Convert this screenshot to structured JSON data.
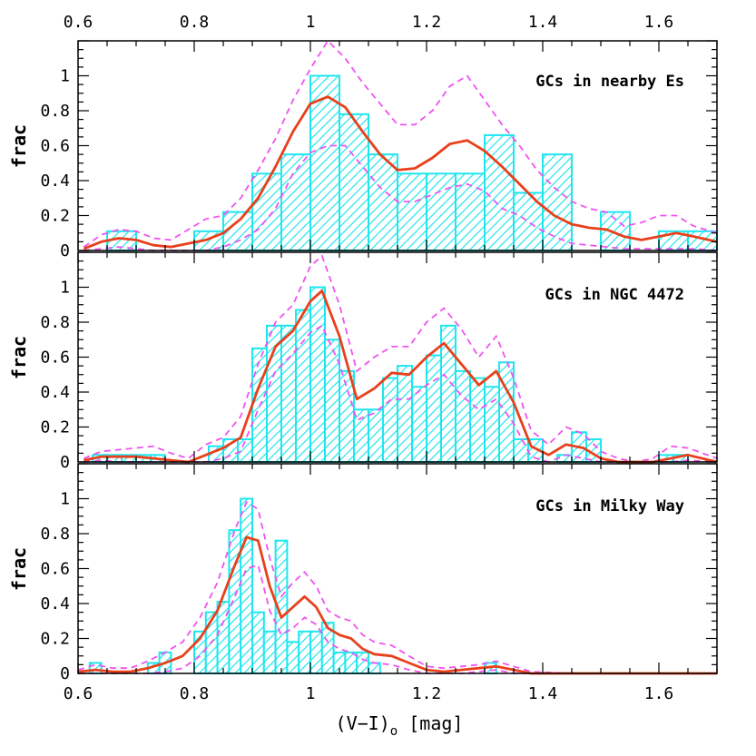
{
  "colors": {
    "histogram": "#1fe6ee",
    "hatch": "#1fe6ee",
    "smoothed": "#e8401c",
    "bounds": "#f052f0",
    "axes": "#000000"
  },
  "chart_data": {
    "type": "histogram-stack",
    "xlabel_main": "(V−I)",
    "xlabel_sub": "o",
    "xlabel_unit": " [mag]",
    "xlim": [
      0.6,
      1.7
    ],
    "x_ticks": [
      "0.6",
      "0.8",
      "1",
      "1.2",
      "1.4",
      "1.6"
    ],
    "x_tick_values": [
      0.6,
      0.8,
      1.0,
      1.2,
      1.4,
      1.6
    ],
    "ylim": [
      0,
      1.2
    ],
    "y_ticks": [
      "0",
      "0.2",
      "0.4",
      "0.6",
      "0.8",
      "1"
    ],
    "y_tick_values": [
      0,
      0.2,
      0.4,
      0.6,
      0.8,
      1.0
    ],
    "panels": [
      {
        "label": "GCs in nearby Es",
        "ylabel": "frac",
        "histogram": {
          "edges": [
            0.6,
            0.65,
            0.7,
            0.75,
            0.8,
            0.85,
            0.9,
            0.95,
            1.0,
            1.05,
            1.1,
            1.15,
            1.2,
            1.25,
            1.3,
            1.35,
            1.4,
            1.45,
            1.5,
            1.55,
            1.6,
            1.65,
            1.7
          ],
          "values": [
            0,
            0.11,
            0,
            0,
            0.11,
            0.22,
            0.44,
            0.55,
            1.0,
            0.78,
            0.55,
            0.44,
            0.44,
            0.44,
            0.66,
            0.33,
            0.55,
            0,
            0.22,
            0,
            0.11,
            0.11
          ]
        },
        "smoothed": {
          "x": [
            0.61,
            0.64,
            0.67,
            0.7,
            0.73,
            0.76,
            0.79,
            0.82,
            0.85,
            0.88,
            0.91,
            0.94,
            0.97,
            1.0,
            1.03,
            1.06,
            1.09,
            1.12,
            1.15,
            1.18,
            1.21,
            1.24,
            1.27,
            1.3,
            1.33,
            1.36,
            1.39,
            1.42,
            1.45,
            1.48,
            1.51,
            1.54,
            1.57,
            1.6,
            1.63,
            1.66,
            1.7
          ],
          "y": [
            0.01,
            0.05,
            0.07,
            0.06,
            0.03,
            0.02,
            0.04,
            0.06,
            0.1,
            0.18,
            0.3,
            0.48,
            0.68,
            0.84,
            0.88,
            0.82,
            0.68,
            0.55,
            0.46,
            0.47,
            0.53,
            0.61,
            0.63,
            0.57,
            0.48,
            0.38,
            0.28,
            0.2,
            0.15,
            0.13,
            0.12,
            0.08,
            0.06,
            0.08,
            0.1,
            0.08,
            0.05
          ]
        },
        "upper": {
          "x": [
            0.61,
            0.64,
            0.67,
            0.7,
            0.73,
            0.76,
            0.79,
            0.82,
            0.85,
            0.88,
            0.91,
            0.94,
            0.97,
            1.0,
            1.03,
            1.06,
            1.09,
            1.12,
            1.15,
            1.18,
            1.21,
            1.24,
            1.27,
            1.3,
            1.33,
            1.36,
            1.39,
            1.42,
            1.45,
            1.48,
            1.51,
            1.54,
            1.57,
            1.6,
            1.63,
            1.66,
            1.7
          ],
          "y": [
            0.02,
            0.09,
            0.12,
            0.11,
            0.07,
            0.06,
            0.12,
            0.18,
            0.2,
            0.3,
            0.46,
            0.64,
            0.86,
            1.04,
            1.2,
            1.1,
            0.96,
            0.84,
            0.72,
            0.72,
            0.8,
            0.94,
            1.0,
            0.86,
            0.72,
            0.6,
            0.46,
            0.36,
            0.28,
            0.24,
            0.22,
            0.14,
            0.16,
            0.2,
            0.2,
            0.14,
            0.1
          ]
        },
        "lower": {
          "x": [
            0.61,
            0.64,
            0.67,
            0.7,
            0.73,
            0.76,
            0.79,
            0.82,
            0.85,
            0.88,
            0.91,
            0.94,
            0.97,
            1.0,
            1.03,
            1.06,
            1.09,
            1.12,
            1.15,
            1.18,
            1.21,
            1.24,
            1.27,
            1.3,
            1.33,
            1.36,
            1.39,
            1.42,
            1.45,
            1.48,
            1.51,
            1.54,
            1.57,
            1.6,
            1.63,
            1.66,
            1.7
          ],
          "y": [
            0.0,
            0.01,
            0.02,
            0.01,
            0.0,
            0.0,
            0.0,
            0.0,
            0.02,
            0.06,
            0.12,
            0.24,
            0.44,
            0.56,
            0.6,
            0.6,
            0.48,
            0.36,
            0.28,
            0.28,
            0.32,
            0.36,
            0.38,
            0.34,
            0.24,
            0.2,
            0.13,
            0.08,
            0.04,
            0.03,
            0.02,
            0.01,
            0.01,
            0.01,
            0.01,
            0.01,
            0.0
          ]
        }
      },
      {
        "label": "GCs in NGC 4472",
        "ylabel": "frac",
        "histogram": {
          "edges": [
            0.6,
            0.625,
            0.65,
            0.675,
            0.7,
            0.725,
            0.75,
            0.775,
            0.8,
            0.825,
            0.85,
            0.875,
            0.9,
            0.925,
            0.95,
            0.975,
            1.0,
            1.025,
            1.05,
            1.075,
            1.1,
            1.125,
            1.15,
            1.175,
            1.2,
            1.225,
            1.25,
            1.275,
            1.3,
            1.325,
            1.35,
            1.375,
            1.4,
            1.425,
            1.45,
            1.475,
            1.5,
            1.525,
            1.55,
            1.575,
            1.6,
            1.625,
            1.65,
            1.675,
            1.7
          ],
          "values": [
            0,
            0.04,
            0.04,
            0.04,
            0.04,
            0.04,
            0,
            0,
            0,
            0.09,
            0.13,
            0.13,
            0.65,
            0.78,
            0.78,
            0.87,
            1.0,
            0.7,
            0.52,
            0.3,
            0.3,
            0.48,
            0.55,
            0.43,
            0.61,
            0.78,
            0.52,
            0.48,
            0.43,
            0.57,
            0.13,
            0.13,
            0,
            0.04,
            0.17,
            0.13,
            0,
            0,
            0,
            0,
            0.04,
            0.04,
            0,
            0
          ]
        },
        "smoothed": {
          "x": [
            0.61,
            0.64,
            0.67,
            0.7,
            0.73,
            0.76,
            0.79,
            0.82,
            0.85,
            0.88,
            0.91,
            0.94,
            0.97,
            1.0,
            1.02,
            1.05,
            1.08,
            1.11,
            1.14,
            1.17,
            1.2,
            1.23,
            1.26,
            1.29,
            1.32,
            1.35,
            1.38,
            1.41,
            1.44,
            1.47,
            1.5,
            1.53,
            1.56,
            1.59,
            1.62,
            1.65,
            1.7
          ],
          "y": [
            0.01,
            0.03,
            0.03,
            0.03,
            0.02,
            0.01,
            0.0,
            0.04,
            0.08,
            0.14,
            0.42,
            0.66,
            0.75,
            0.92,
            0.98,
            0.72,
            0.36,
            0.42,
            0.51,
            0.5,
            0.6,
            0.68,
            0.56,
            0.44,
            0.52,
            0.34,
            0.09,
            0.04,
            0.1,
            0.08,
            0.02,
            0.0,
            0.0,
            0.0,
            0.02,
            0.04,
            0.0
          ]
        },
        "upper": {
          "x": [
            0.61,
            0.64,
            0.67,
            0.7,
            0.73,
            0.76,
            0.79,
            0.82,
            0.85,
            0.88,
            0.91,
            0.94,
            0.97,
            1.0,
            1.02,
            1.05,
            1.08,
            1.11,
            1.14,
            1.17,
            1.2,
            1.23,
            1.26,
            1.29,
            1.32,
            1.35,
            1.38,
            1.41,
            1.44,
            1.47,
            1.5,
            1.53,
            1.56,
            1.59,
            1.62,
            1.65,
            1.7
          ],
          "y": [
            0.02,
            0.06,
            0.07,
            0.08,
            0.09,
            0.05,
            0.02,
            0.1,
            0.14,
            0.26,
            0.56,
            0.8,
            0.9,
            1.12,
            1.18,
            0.9,
            0.52,
            0.6,
            0.66,
            0.66,
            0.8,
            0.88,
            0.76,
            0.6,
            0.72,
            0.48,
            0.18,
            0.1,
            0.2,
            0.16,
            0.06,
            0.02,
            0.0,
            0.02,
            0.09,
            0.08,
            0.02
          ]
        },
        "lower": {
          "x": [
            0.61,
            0.64,
            0.67,
            0.7,
            0.73,
            0.76,
            0.79,
            0.82,
            0.85,
            0.88,
            0.91,
            0.94,
            0.97,
            1.0,
            1.02,
            1.05,
            1.08,
            1.11,
            1.14,
            1.17,
            1.2,
            1.23,
            1.26,
            1.29,
            1.32,
            1.35,
            1.38,
            1.41,
            1.44,
            1.47,
            1.5,
            1.53,
            1.56,
            1.59,
            1.62,
            1.65,
            1.7
          ],
          "y": [
            0.0,
            0.01,
            0.0,
            0.0,
            0.0,
            0.0,
            0.0,
            0.0,
            0.02,
            0.06,
            0.3,
            0.52,
            0.62,
            0.74,
            0.78,
            0.56,
            0.24,
            0.28,
            0.36,
            0.36,
            0.44,
            0.5,
            0.38,
            0.3,
            0.36,
            0.22,
            0.03,
            0.0,
            0.04,
            0.02,
            0.0,
            0.0,
            0.0,
            0.0,
            0.0,
            0.01,
            0.0
          ]
        }
      },
      {
        "label": "GCs in Milky Way",
        "ylabel": "frac",
        "histogram": {
          "edges": [
            0.6,
            0.62,
            0.64,
            0.66,
            0.68,
            0.7,
            0.72,
            0.74,
            0.76,
            0.78,
            0.8,
            0.82,
            0.84,
            0.86,
            0.88,
            0.9,
            0.92,
            0.94,
            0.96,
            0.98,
            1.0,
            1.02,
            1.04,
            1.06,
            1.08,
            1.1,
            1.12,
            1.14,
            1.16,
            1.18,
            1.2,
            1.22,
            1.24,
            1.26,
            1.28,
            1.3,
            1.32,
            1.34,
            1.36,
            1.38,
            1.4,
            1.42,
            1.44,
            1.46,
            1.48,
            1.5,
            1.52,
            1.54,
            1.56,
            1.58,
            1.6,
            1.62,
            1.64,
            1.66,
            1.68,
            1.7
          ],
          "values": [
            0,
            0.06,
            0,
            0,
            0,
            0,
            0.06,
            0.12,
            0,
            0,
            0.24,
            0.35,
            0.41,
            0.82,
            1.0,
            0.35,
            0.24,
            0.76,
            0.18,
            0.24,
            0.24,
            0.29,
            0.12,
            0.12,
            0.12,
            0.06,
            0,
            0,
            0,
            0,
            0,
            0,
            0,
            0,
            0,
            0.06,
            0,
            0,
            0,
            0,
            0,
            0,
            0,
            0,
            0,
            0,
            0,
            0,
            0,
            0,
            0,
            0,
            0,
            0,
            0
          ]
        },
        "smoothed": {
          "x": [
            0.6,
            0.63,
            0.66,
            0.69,
            0.72,
            0.75,
            0.78,
            0.81,
            0.84,
            0.87,
            0.89,
            0.91,
            0.93,
            0.95,
            0.97,
            0.99,
            1.01,
            1.03,
            1.05,
            1.07,
            1.09,
            1.11,
            1.14,
            1.17,
            1.2,
            1.23,
            1.26,
            1.29,
            1.32,
            1.35,
            1.38,
            1.45,
            1.55,
            1.7
          ],
          "y": [
            0.01,
            0.02,
            0.01,
            0.01,
            0.03,
            0.06,
            0.1,
            0.2,
            0.36,
            0.62,
            0.78,
            0.76,
            0.5,
            0.32,
            0.38,
            0.44,
            0.38,
            0.26,
            0.22,
            0.2,
            0.14,
            0.11,
            0.1,
            0.06,
            0.02,
            0.01,
            0.02,
            0.03,
            0.04,
            0.02,
            0.0,
            0.0,
            0.0,
            0.0
          ]
        },
        "upper": {
          "x": [
            0.6,
            0.63,
            0.66,
            0.69,
            0.72,
            0.75,
            0.78,
            0.81,
            0.84,
            0.87,
            0.89,
            0.91,
            0.93,
            0.95,
            0.97,
            0.99,
            1.01,
            1.03,
            1.05,
            1.07,
            1.09,
            1.11,
            1.14,
            1.17,
            1.2,
            1.23,
            1.26,
            1.29,
            1.32,
            1.35,
            1.38,
            1.45,
            1.55,
            1.7
          ],
          "y": [
            0.02,
            0.05,
            0.03,
            0.03,
            0.07,
            0.12,
            0.18,
            0.32,
            0.52,
            0.82,
            0.98,
            0.94,
            0.66,
            0.44,
            0.52,
            0.58,
            0.5,
            0.36,
            0.32,
            0.3,
            0.22,
            0.18,
            0.16,
            0.1,
            0.04,
            0.03,
            0.04,
            0.05,
            0.07,
            0.04,
            0.01,
            0.0,
            0.0,
            0.0
          ]
        },
        "lower": {
          "x": [
            0.6,
            0.63,
            0.66,
            0.69,
            0.72,
            0.75,
            0.78,
            0.81,
            0.84,
            0.87,
            0.89,
            0.91,
            0.93,
            0.95,
            0.97,
            0.99,
            1.01,
            1.03,
            1.05,
            1.07,
            1.09,
            1.11,
            1.14,
            1.17,
            1.2,
            1.23,
            1.26,
            1.29,
            1.32,
            1.35,
            1.38,
            1.45,
            1.55,
            1.7
          ],
          "y": [
            0.0,
            0.0,
            0.0,
            0.0,
            0.0,
            0.01,
            0.03,
            0.1,
            0.22,
            0.44,
            0.6,
            0.62,
            0.36,
            0.22,
            0.26,
            0.32,
            0.28,
            0.18,
            0.14,
            0.12,
            0.08,
            0.06,
            0.05,
            0.02,
            0.0,
            0.0,
            0.0,
            0.01,
            0.02,
            0.0,
            0.0,
            0.0,
            0.0,
            0.0
          ]
        }
      }
    ]
  }
}
